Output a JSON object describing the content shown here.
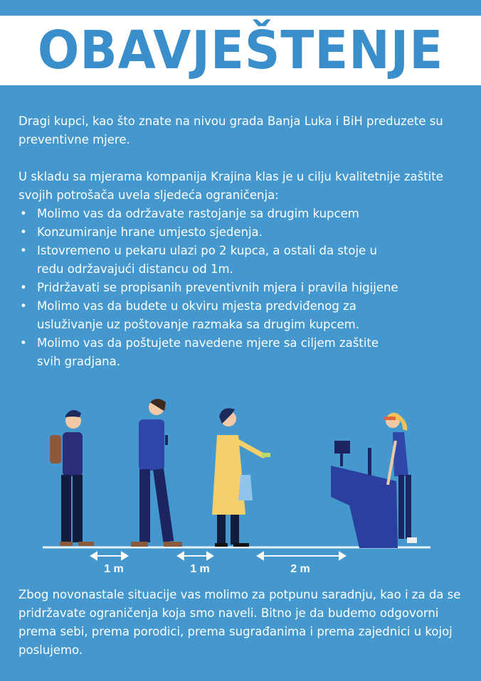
{
  "title": "OBAVJEŠTENJE",
  "intro": "Dragi kupci, kao što znate na nivou grada Banja Luka i BiH preduzete su preventivne mjere.",
  "lead": "U skladu sa mjerama kompanija Krajina klas je u cilju kvalitetnije zaštite svojih potrošača uvela sljedeća ograničenja:",
  "rules": [
    "Molimo vas da održavate rastojanje sa drugim kupcem",
    "Konzumiranje hrane umjesto sjedenja.",
    "Istovremeno u pekaru ulazi po 2 kupca, a ostali da stoje u redu održavajući distancu od 1m.",
    "Pridržavati se propisanih preventivnih mjera i pravila higijene",
    "Molimo vas da budete u okviru mjesta predviđenog za usluživanje uz poštovanje razmaka sa drugim kupcem.",
    "Molimo vas da poštujete navedene mjere sa ciljem zaštite svih gradjana."
  ],
  "distances": [
    "1 m",
    "1 m",
    "2 m"
  ],
  "outro": "Zbog novonastale situacije vas molimo za potpunu saradnju, kao i za da se pridržavate ograničenja koja smo naveli. Bitno je da budemo odgovorni prema sebi, prema porodici, prema sugrađanima i prema zajednici u kojoj poslujemo.",
  "colors": {
    "background": "#4498cd",
    "title": "#3a8fca",
    "band": "#ffffff"
  }
}
